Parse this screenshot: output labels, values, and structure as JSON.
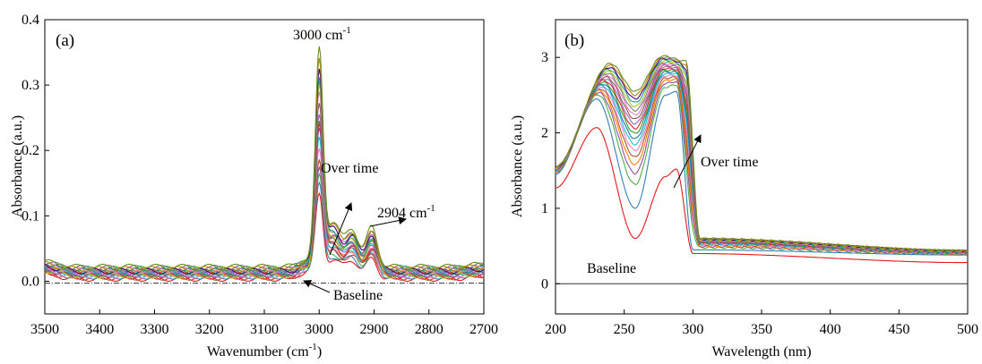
{
  "chart_data": [
    {
      "panel_label": "(a)",
      "type": "line",
      "xlabel": "Wavenumber (cm",
      "xlabel_sup": "-1",
      "xlabel_tail": ")",
      "ylabel": "Absorbance (a.u.)",
      "xlim": [
        3500,
        2700
      ],
      "x_reversed": true,
      "ylim": [
        -0.05,
        0.4
      ],
      "xticks": [
        "3500",
        "3400",
        "3300",
        "3200",
        "3100",
        "3000",
        "2900",
        "2800",
        "2700"
      ],
      "yticks": [
        "0.0",
        "0.1",
        "0.2",
        "0.3",
        "0.4"
      ],
      "annotations": {
        "peak1_text": "3000 cm",
        "peak1_sup": "-1",
        "peak2_text": "2904 cm",
        "peak2_sup": "-1",
        "over_time": "Over time",
        "baseline": "Baseline"
      },
      "curve_count": 20,
      "peak_first": 0.12,
      "peak_last": 0.32,
      "baseline_value": -0.003,
      "series_colors": [
        "#e41a1c",
        "#377eb8",
        "#4daf4a",
        "#984ea3",
        "#ff7f00",
        "#a65628",
        "#f781bf",
        "#17becf",
        "#1f77b4",
        "#2ca02c",
        "#d62728",
        "#9467bd",
        "#8c564b",
        "#e377c2",
        "#7f7f7f",
        "#bcbd22",
        "#17a589",
        "#4b0082",
        "#b8860b",
        "#6b8e23"
      ]
    },
    {
      "panel_label": "(b)",
      "type": "line",
      "xlabel": "Wavelength (nm)",
      "ylabel": "Absorbance (a.u.)",
      "xlim": [
        200,
        500
      ],
      "ylim": [
        -0.4,
        3.5
      ],
      "xticks": [
        "200",
        "250",
        "300",
        "350",
        "400",
        "450",
        "500"
      ],
      "yticks": [
        "0",
        "1",
        "2",
        "3"
      ],
      "annotations": {
        "over_time": "Over time",
        "baseline": "Baseline"
      },
      "curve_count": 20,
      "baseline_value": 0.0,
      "first_curve": {
        "x": [
          200,
          230,
          258,
          280,
          288,
          300,
          500
        ],
        "y": [
          1.27,
          2.07,
          0.6,
          1.42,
          1.52,
          0.4,
          0.28
        ]
      },
      "second_curve": {
        "x": [
          200,
          230,
          258,
          280,
          288,
          300,
          500
        ],
        "y": [
          1.45,
          2.45,
          1.0,
          2.5,
          2.55,
          0.45,
          0.38
        ]
      },
      "last_curve": {
        "x": [
          200,
          240,
          258,
          278,
          295,
          305,
          500
        ],
        "y": [
          1.55,
          2.92,
          2.55,
          3.02,
          2.95,
          0.6,
          0.44
        ]
      },
      "series_colors": [
        "#e41a1c",
        "#377eb8",
        "#4daf4a",
        "#984ea3",
        "#ff7f00",
        "#a65628",
        "#f781bf",
        "#17becf",
        "#1f77b4",
        "#2ca02c",
        "#d62728",
        "#9467bd",
        "#8c564b",
        "#e377c2",
        "#7f7f7f",
        "#bcbd22",
        "#17a589",
        "#4b0082",
        "#b8860b",
        "#6b8e23"
      ]
    }
  ]
}
